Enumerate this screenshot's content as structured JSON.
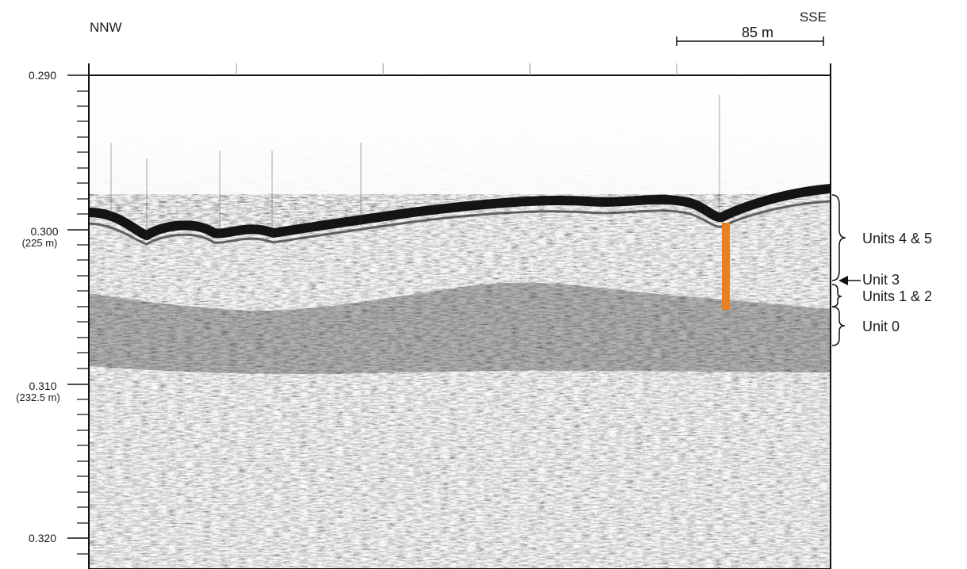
{
  "direction": {
    "left": "NNW",
    "right": "SSE"
  },
  "scale_bar": {
    "label": "85 m"
  },
  "y_axis": {
    "ticks": [
      {
        "value": "0.290",
        "depth": ""
      },
      {
        "value": "0.300",
        "depth": "(225 m)"
      },
      {
        "value": "0.310",
        "depth": "(232.5 m)"
      },
      {
        "value": "0.320",
        "depth": ""
      }
    ]
  },
  "units": {
    "units_4_5": "Units 4 & 5",
    "unit_3": "Unit 3",
    "units_1_2": "Units 1 & 2",
    "unit_0": "Unit 0"
  },
  "colors": {
    "core_marker": "#e8801f",
    "seabed_reflector": "#141414"
  }
}
